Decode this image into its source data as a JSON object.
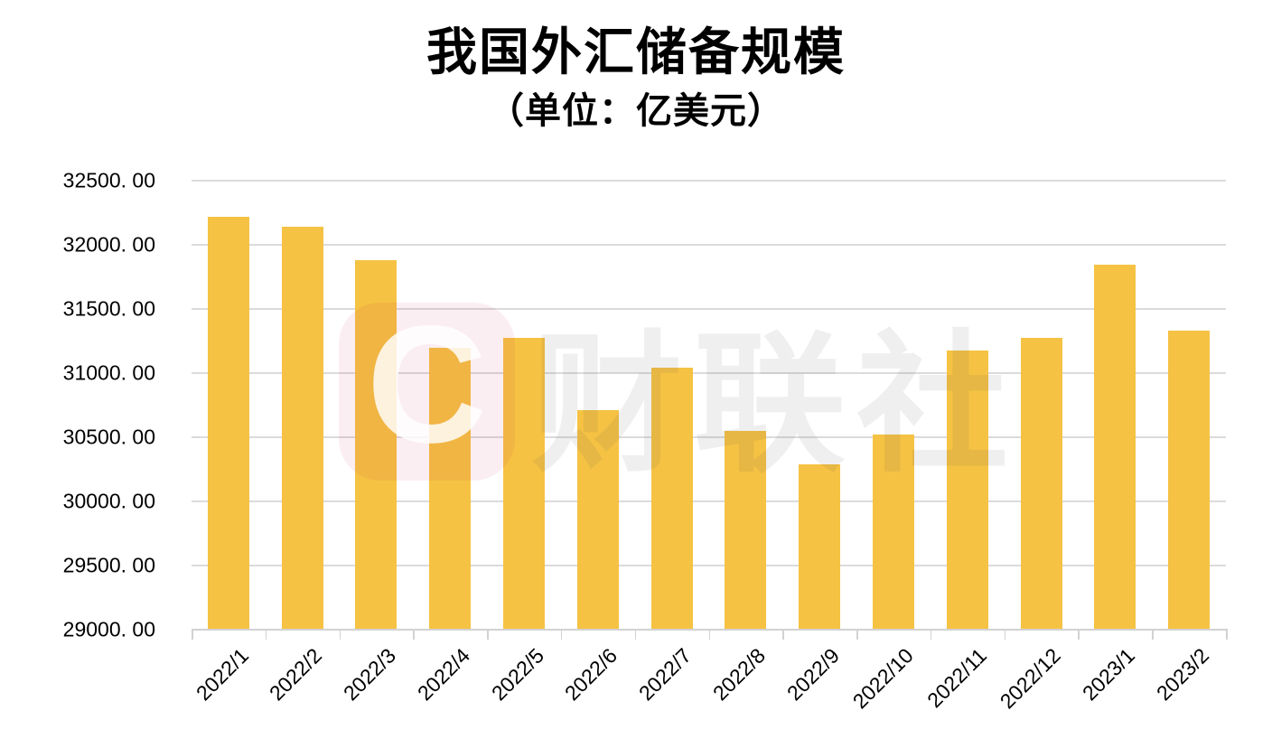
{
  "page": {
    "background": "#FFFFFF"
  },
  "chart_data": {
    "type": "bar",
    "title": "我国外汇储备规模",
    "subtitle": "（单位：亿美元）",
    "categories": [
      "2022/1",
      "2022/2",
      "2022/3",
      "2022/4",
      "2022/5",
      "2022/6",
      "2022/7",
      "2022/8",
      "2022/9",
      "2022/10",
      "2022/11",
      "2022/12",
      "2023/1",
      "2023/2"
    ],
    "values": [
      32216.4,
      32138.2,
      31879.9,
      31197.2,
      31278.0,
      30712.7,
      31040.7,
      30548.8,
      30289.9,
      30524.1,
      31174.5,
      31276.9,
      31844.6,
      31331.5
    ],
    "ylim": [
      29000,
      32500
    ],
    "y_tick_step": 500,
    "y_tick_labels": [
      "32500. 00",
      "32000. 00",
      "31500. 00",
      "31000. 00",
      "30500. 00",
      "30000. 00",
      "29500. 00",
      "29000. 00"
    ],
    "xlabel": "",
    "ylabel": "",
    "grid": true,
    "legend_position": "none",
    "x_label_rotation_deg": -45,
    "bar_color": "#F5C243",
    "grid_color": "#DBDBDB",
    "axis_color": "#D2D2D2",
    "text_color": "#000000"
  },
  "watermark": {
    "logo_letter": "C",
    "text": "财联社",
    "square_color": "rgba(200,30,80,0.075)",
    "letter_color": "rgba(255,255,255,0.82)",
    "text_color": "rgba(80,80,80,0.095)"
  }
}
